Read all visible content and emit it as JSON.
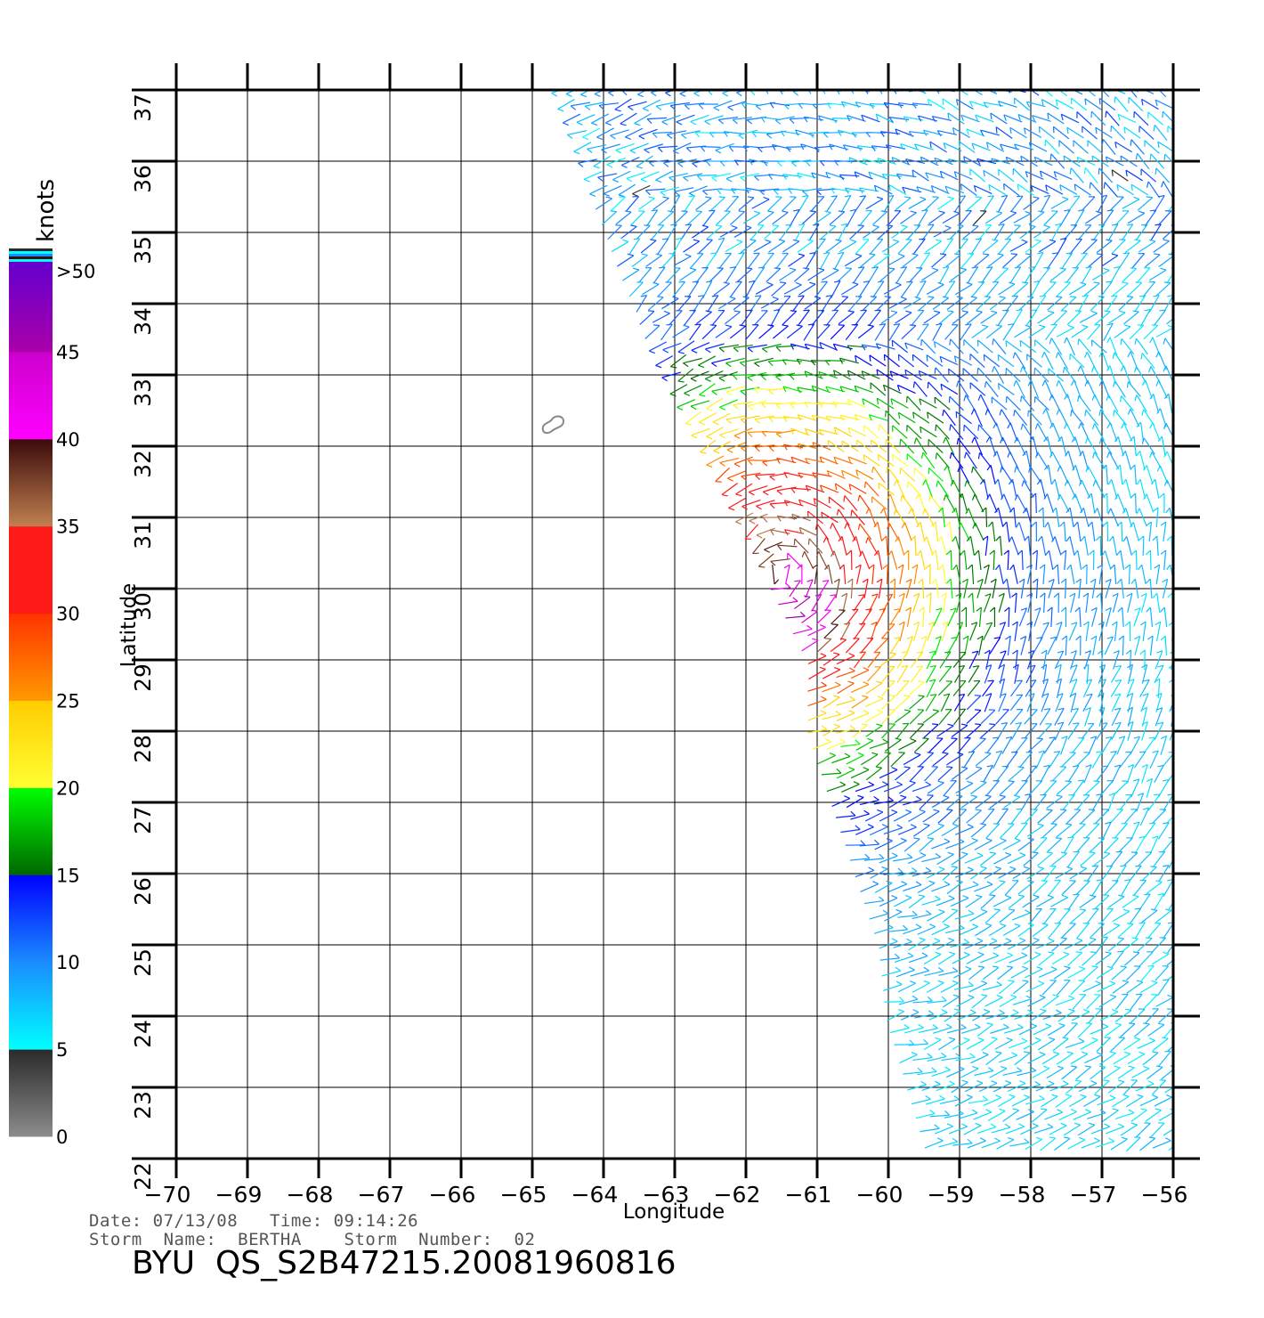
{
  "map": {
    "x_axis": {
      "title": "Longitude",
      "range": [
        -70,
        -56
      ],
      "ticks": [
        -70,
        -69,
        -68,
        -67,
        -66,
        -65,
        -64,
        -63,
        -62,
        -61,
        -60,
        -59,
        -58,
        -57,
        -56
      ],
      "tick_labels": [
        "−70",
        "−69",
        "−68",
        "−67",
        "−66",
        "−65",
        "−64",
        "−63",
        "−62",
        "−61",
        "−60",
        "−59",
        "−58",
        "−57",
        "−56"
      ]
    },
    "y_axis": {
      "title": "Latitude",
      "range": [
        22,
        37
      ],
      "ticks": [
        22,
        23,
        24,
        25,
        26,
        27,
        28,
        29,
        30,
        31,
        32,
        33,
        34,
        35,
        36,
        37
      ],
      "tick_labels": [
        "22",
        "23",
        "24",
        "25",
        "26",
        "27",
        "28",
        "29",
        "30",
        "31",
        "32",
        "33",
        "34",
        "35",
        "36",
        "37"
      ]
    },
    "grid": true,
    "swath": {
      "description_of_coverage": "diagonal swath on eastern side",
      "west_edge": [
        [
          -64.6,
          37
        ],
        [
          -63.2,
          33.3
        ],
        [
          -61.0,
          29.0
        ],
        [
          -61.0,
          28.0
        ],
        [
          -60.5,
          26.5
        ],
        [
          -60.0,
          25.0
        ],
        [
          -59.9,
          24.0
        ],
        [
          -59.3,
          22.0
        ]
      ],
      "east_edge_lon": -56,
      "wind_field": {
        "high_wind_center": {
          "lon": -61.5,
          "lat": 30.2
        },
        "peak_knots": 42,
        "peak_region": {
          "lon": -61.3,
          "lat": 29.6
        }
      }
    },
    "land_feature": {
      "name_shown": "",
      "lon": -64.7,
      "lat": 32.3,
      "color": "#888888"
    }
  },
  "colorbar": {
    "units": "knots",
    "tick_labels": [
      ">50",
      "45",
      "40",
      "35",
      "30",
      "25",
      "20",
      "15",
      "10",
      "5",
      "0"
    ],
    "bands": [
      {
        "range": [
          0,
          5
        ],
        "from": "#8c8c8c",
        "to": "#2a2a2a"
      },
      {
        "range": [
          5,
          10
        ],
        "from": "#00ffff",
        "to": "#1a8cff"
      },
      {
        "range": [
          10,
          15
        ],
        "from": "#1a8cff",
        "to": "#0000ff"
      },
      {
        "range": [
          15,
          20
        ],
        "from": "#006600",
        "to": "#00ff00"
      },
      {
        "range": [
          20,
          25
        ],
        "from": "#ffff33",
        "to": "#ffcc00"
      },
      {
        "range": [
          25,
          30
        ],
        "from": "#ff9900",
        "to": "#ff3300"
      },
      {
        "range": [
          30,
          35
        ],
        "from": "#ff1a1a",
        "to": "#ff1a1a"
      },
      {
        "range": [
          35,
          40
        ],
        "from": "#c08050",
        "to": "#3a0a0a"
      },
      {
        "range": [
          40,
          45
        ],
        "from": "#ff00ff",
        "to": "#cc00cc"
      },
      {
        "range": [
          45,
          50
        ],
        "from": "#aa00aa",
        "to": "#6600cc"
      }
    ]
  },
  "metadata": {
    "line1": "Date: 07/13/08   Time: 09:14:26",
    "line2": "Storm  Name:  BERTHA    Storm  Number:  02",
    "product_id": "BYU  QS_S2B47215.20081960816"
  }
}
